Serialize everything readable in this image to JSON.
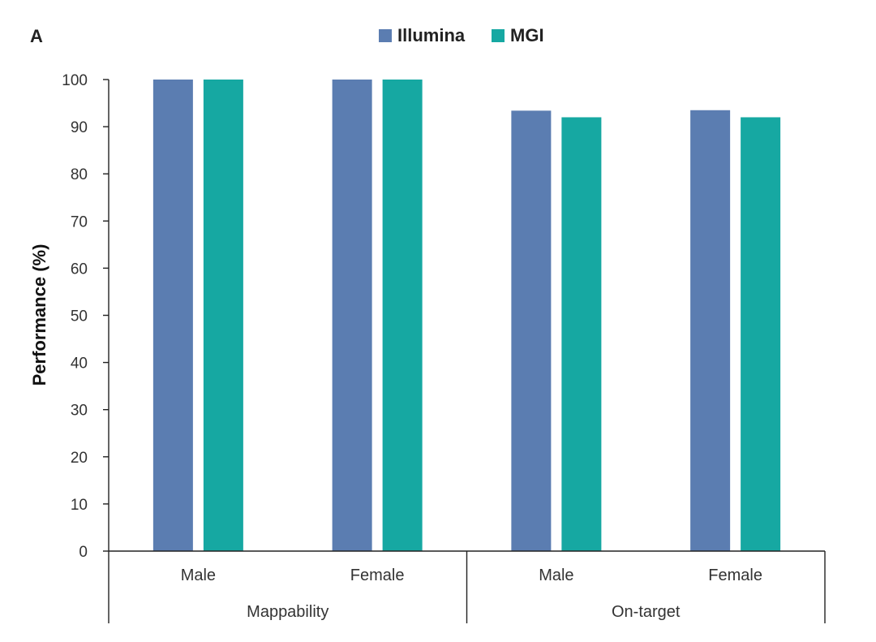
{
  "panel_label": "A",
  "colors": {
    "Illumina": "#5b7db1",
    "MGI": "#16a8a2"
  },
  "chart_data": {
    "type": "bar",
    "title": "",
    "ylabel": "Performance (%)",
    "xlabel": "",
    "ylim": [
      0,
      100
    ],
    "yticks": [
      0,
      10,
      20,
      30,
      40,
      50,
      60,
      70,
      80,
      90,
      100
    ],
    "categories": [
      "Male",
      "Female",
      "Male",
      "Female"
    ],
    "groups": [
      {
        "label": "Mappability",
        "categories": [
          "Male",
          "Female"
        ]
      },
      {
        "label": "On-target",
        "categories": [
          "Male",
          "Female"
        ]
      }
    ],
    "series": [
      {
        "name": "Illumina",
        "values": [
          100,
          100,
          93.4,
          93.5
        ]
      },
      {
        "name": "MGI",
        "values": [
          100,
          100,
          92.0,
          92.0
        ]
      }
    ],
    "legend_position": "top-center",
    "grid": false
  }
}
